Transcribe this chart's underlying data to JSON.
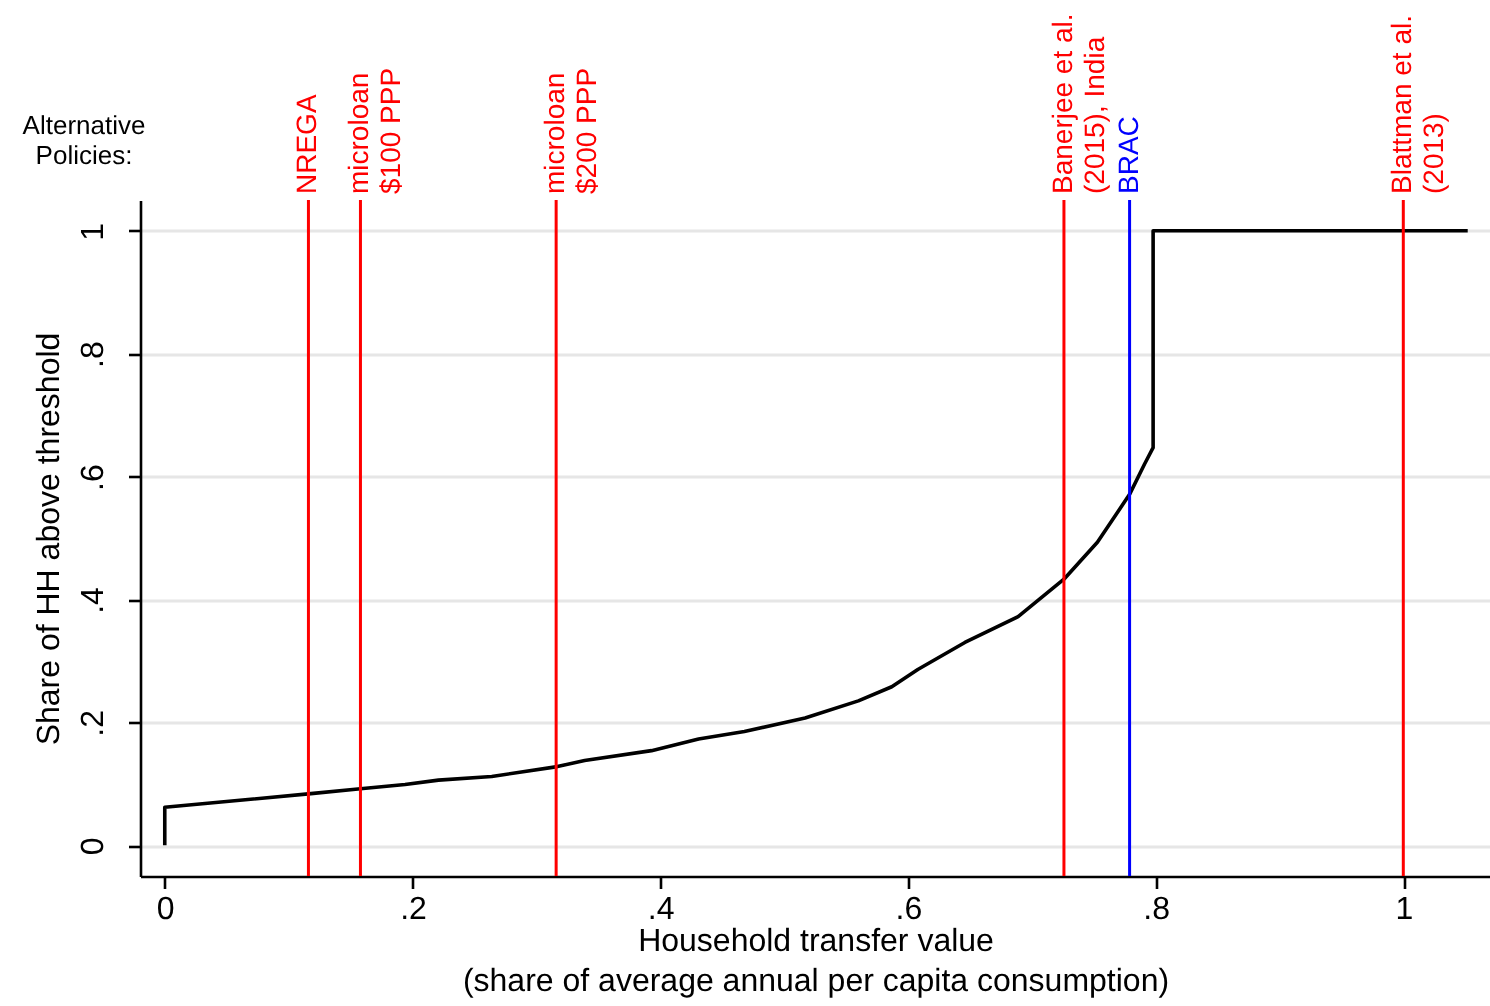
{
  "chart_data": {
    "type": "line",
    "xlabel": "Household transfer value\n(share of average annual per capita consumption)",
    "ylabel": "Share of HH above threshold",
    "annotations": [
      "Alternative\nPolicies:"
    ],
    "xlim": [
      -0.02,
      1.07
    ],
    "ylim": [
      -0.05,
      1.05
    ],
    "xticks": [
      0,
      {
        "value": 0.2,
        "label": ".2"
      },
      {
        "value": 0.4,
        "label": ".4"
      },
      {
        "value": 0.6,
        "label": ".6"
      },
      {
        "value": 0.8,
        "label": ".8"
      },
      1
    ],
    "yticks": [
      0,
      {
        "value": 0.2,
        "label": ".2"
      },
      {
        "value": 0.4,
        "label": ".4"
      },
      {
        "value": 0.6,
        "label": ".6"
      },
      {
        "value": 0.8,
        "label": ".8"
      },
      1
    ],
    "grid": "y",
    "x": [
      0,
      0,
      0.065,
      0.118,
      0.158,
      0.194,
      0.221,
      0.264,
      0.317,
      0.339,
      0.393,
      0.431,
      0.468,
      0.517,
      0.56,
      0.587,
      0.608,
      0.646,
      0.689,
      0.726,
      0.753,
      0.779,
      0.791,
      0.798,
      0.798,
      1.052
    ],
    "series": [
      {
        "color": "#000000",
        "values": [
          0,
          0.062,
          0.074,
          0.084,
          0.092,
          0.099,
          0.106,
          0.112,
          0.128,
          0.138,
          0.154,
          0.173,
          0.185,
          0.207,
          0.235,
          0.258,
          0.286,
          0.33,
          0.372,
          0.433,
          0.493,
          0.571,
          0.62,
          0.647,
          1,
          1
        ]
      }
    ],
    "ref_lines": [
      {
        "axis": "x",
        "value": 0.116,
        "label": "NREGA",
        "color": "#ff0000"
      },
      {
        "axis": "x",
        "value": 0.158,
        "label": "microloan\n$100 PPP",
        "color": "#ff0000"
      },
      {
        "axis": "x",
        "value": 0.316,
        "label": "microloan\n$200 PPP",
        "color": "#ff0000"
      },
      {
        "axis": "x",
        "value": 0.726,
        "label": "Banerjee et al.\n(2015), India",
        "color": "#ff0000"
      },
      {
        "axis": "x",
        "value": 0.779,
        "label": "BRAC",
        "color": "#0000ff"
      },
      {
        "axis": "x",
        "value": 1,
        "label": "Blattman et al.\n(2013)",
        "color": "#ff0000"
      }
    ]
  }
}
